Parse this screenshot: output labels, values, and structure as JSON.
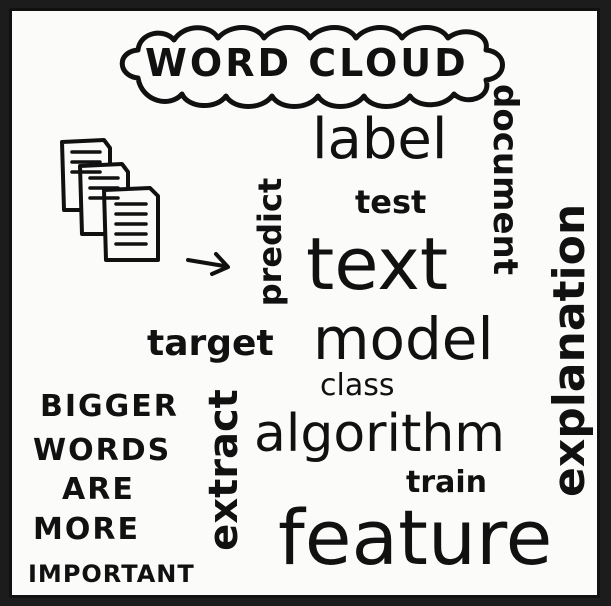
{
  "title": "WORD CLOUD",
  "note": [
    "BIGGER",
    "WORDS",
    "ARE",
    "MORE",
    "IMPORTANT"
  ],
  "words": {
    "label": "label",
    "test": "test",
    "text": "text",
    "model": "model",
    "target": "target",
    "class": "class",
    "algorithm": "algorithm",
    "train": "train",
    "feature": "feature",
    "predict": "predict",
    "document": "document",
    "explanation": "explanation",
    "extract": "extract"
  },
  "icons": [
    "documents-stack-icon",
    "arrow-right-icon",
    "cloud-outline-icon"
  ],
  "colors": {
    "ink": "#111111",
    "paper": "#fbfbfa",
    "frame": "#1c1c1c"
  }
}
